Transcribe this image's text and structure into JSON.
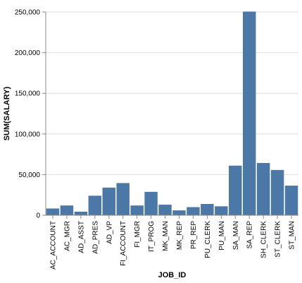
{
  "chart_data": {
    "type": "bar",
    "xlabel": "JOB_ID",
    "ylabel": "SUM(SALARY)",
    "ylim": [
      0,
      250000
    ],
    "y_ticks": [
      0,
      50000,
      100000,
      150000,
      200000,
      250000
    ],
    "y_tick_labels": [
      "0",
      "50,000",
      "100,000",
      "150,000",
      "200,000",
      "250,000"
    ],
    "grid": true,
    "bar_color": "#4c78a8",
    "categories": [
      "AC_ACCOUNT",
      "AC_MGR",
      "AD_ASST",
      "AD_PRES",
      "AD_VP",
      "FI_ACCOUNT",
      "FI_MGR",
      "IT_PROG",
      "MK_MAN",
      "MK_REP",
      "PR_REP",
      "PU_CLERK",
      "PU_MAN",
      "SA_MAN",
      "SA_REP",
      "SH_CLERK",
      "ST_CLERK",
      "ST_MAN"
    ],
    "values": [
      8300,
      12000,
      4400,
      24000,
      34000,
      39600,
      12000,
      28800,
      13000,
      6000,
      10000,
      13900,
      11000,
      61000,
      250500,
      64300,
      55700,
      36400
    ]
  }
}
